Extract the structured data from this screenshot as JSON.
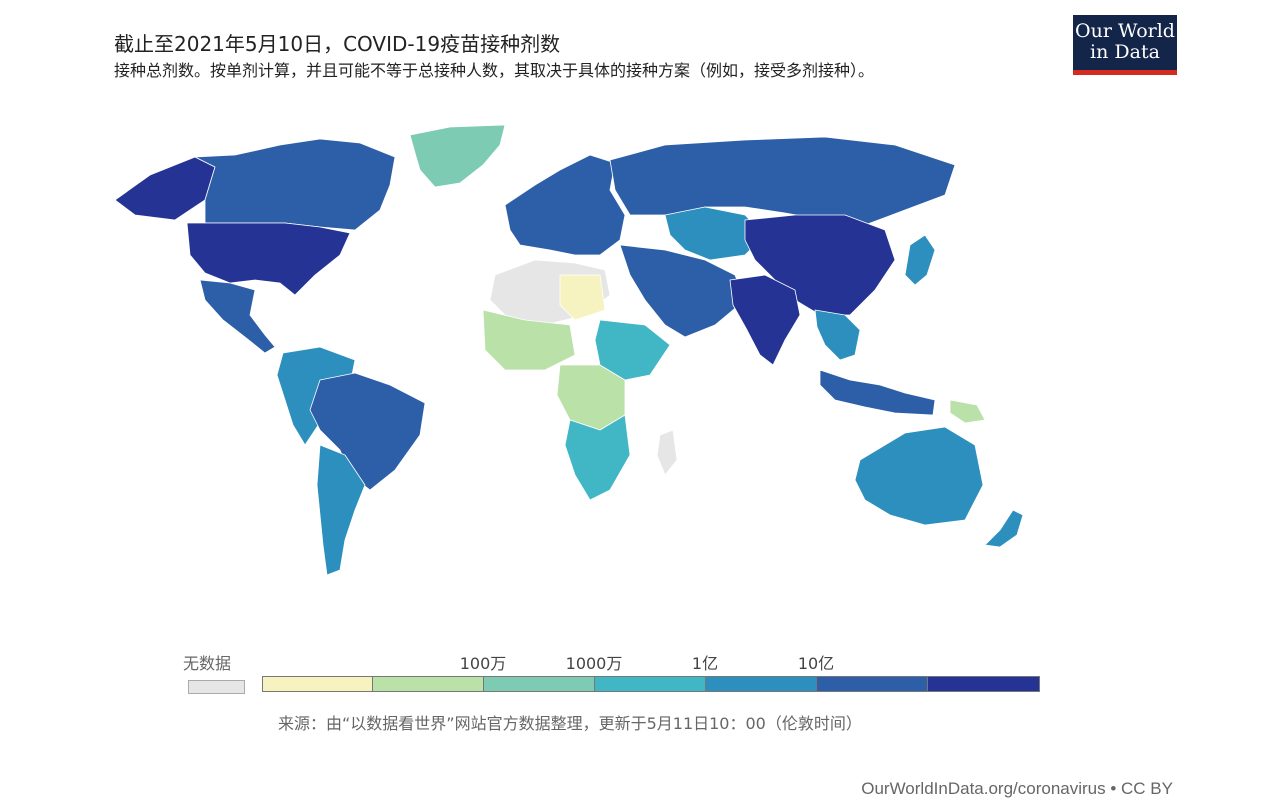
{
  "header": {
    "title": "截止至2021年5月10日，COVID-19疫苗接种剂数",
    "subtitle": "接种总剂数。按单剂计算，并且可能不等于总接种人数，其取决于具体的接种方案（例如，接受多剂接种）。"
  },
  "logo": {
    "line1": "Our World",
    "line2": "in Data",
    "bg_color": "#13264a",
    "accent_color": "#d42b21"
  },
  "legend": {
    "no_data_label": "无数据",
    "no_data_color": "#e6e6e6",
    "ticks": [
      "100万",
      "1000万",
      "1亿",
      "10亿"
    ],
    "bins": [
      {
        "color": "#f6f3c0"
      },
      {
        "color": "#b9e1a8"
      },
      {
        "color": "#7ccbb2"
      },
      {
        "color": "#41b6c4"
      },
      {
        "color": "#2c8fbe"
      },
      {
        "color": "#2c5fa8"
      },
      {
        "color": "#253494"
      }
    ]
  },
  "source": "来源：由“以数据看世界”网站官方数据整理，更新于5月11日10：00（伦敦时间）",
  "footer": "OurWorldInData.org/coronavirus • CC BY",
  "map_colors": {
    "greenland": "#7ccbb2",
    "canada": "#2c5fa8",
    "alaska": "#253494",
    "usa": "#253494",
    "mexico": "#2c5fa8",
    "south_america": "#2c8fbe",
    "brazil": "#2c5fa8",
    "europe": "#2c5fa8",
    "russia": "#2c5fa8",
    "kazakhstan": "#2c8fbe",
    "china": "#253494",
    "india": "#253494",
    "middle_east": "#2c5fa8",
    "north_africa": "#e6e6e6",
    "west_africa": "#b9e1a8",
    "central_africa": "#b9e1a8",
    "southern_africa": "#41b6c4",
    "east_africa": "#41b6c4",
    "australia": "#2c8fbe",
    "indonesia": "#2c5fa8",
    "southeast_asia": "#2c8fbe",
    "japan": "#2c8fbe",
    "new_zealand": "#2c8fbe",
    "png": "#b9e1a8",
    "madagascar": "#e6e6e6",
    "libya": "#f6f3c0"
  }
}
